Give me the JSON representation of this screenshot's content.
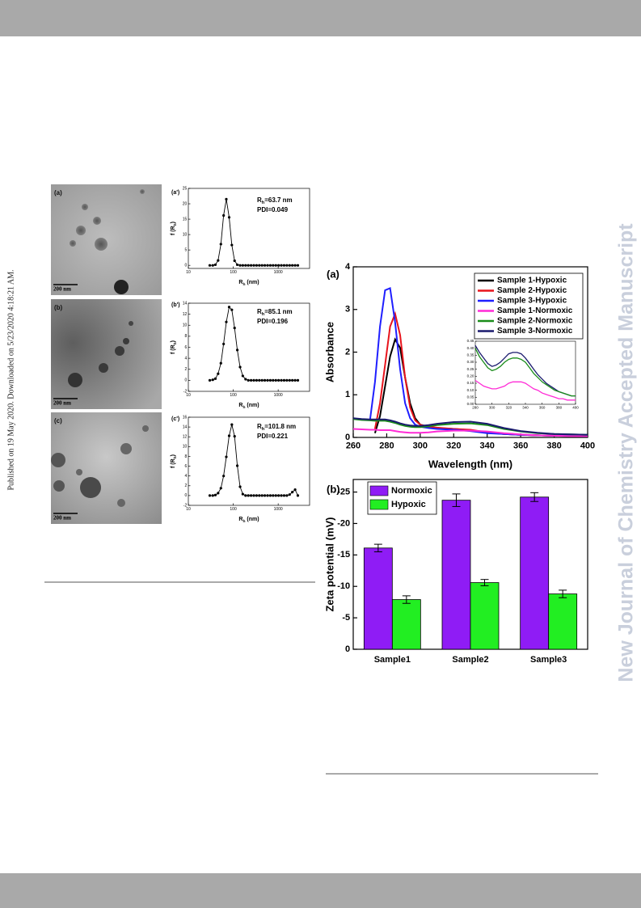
{
  "side_note": "Published on 19 May 2020. Downloaded on 5/23/2020 4:18:21 AM.",
  "watermark": "New Journal of Chemistry Accepted Manuscript",
  "tem_images": [
    {
      "label": "(a)",
      "scale_bar": "200 nm"
    },
    {
      "label": "(b)",
      "scale_bar": "200 nm"
    },
    {
      "label": "(c)",
      "scale_bar": "200 nm"
    }
  ],
  "chart_data": [
    {
      "type": "line",
      "panel_label": "(a')",
      "size_label": [
        "R",
        "h",
        "=63.7 nm"
      ],
      "pdi_label": "PDI=0.049",
      "x_label": [
        "R",
        "h",
        " (nm)"
      ],
      "y_label": [
        "f (R",
        "h",
        ")"
      ],
      "xscale": "log",
      "markers": true,
      "color": "#000000",
      "x": [
        30,
        35,
        40,
        46,
        53,
        61,
        70,
        81,
        93,
        107,
        123,
        142,
        163,
        188,
        216,
        249,
        287,
        330,
        380,
        437,
        503,
        580,
        668,
        769,
        886,
        1020,
        1175,
        1353,
        1559,
        1795,
        2067,
        2380,
        2740
      ],
      "values": [
        0,
        0,
        0.2,
        1.6,
        6.9,
        16.2,
        21.5,
        15.6,
        6.6,
        1.5,
        0.2,
        0,
        0,
        0,
        0,
        0,
        0,
        0,
        0,
        0,
        0,
        0,
        0,
        0,
        0,
        0,
        0,
        0,
        0,
        0,
        0,
        0,
        0
      ],
      "xlim": [
        10,
        5000
      ],
      "xticks": [
        10,
        100,
        1000
      ],
      "ylim": [
        -1,
        25
      ],
      "yticks": [
        0,
        5,
        10,
        15,
        20,
        25
      ]
    },
    {
      "type": "line",
      "panel_label": "(b')",
      "size_label": [
        "R",
        "h",
        "=85.1 nm"
      ],
      "pdi_label": "PDI=0.196",
      "x_label": [
        "R",
        "h",
        " (nm)"
      ],
      "y_label": [
        "f (R",
        "h",
        ")"
      ],
      "xscale": "log",
      "markers": true,
      "color": "#000000",
      "x": [
        30,
        35,
        40,
        46,
        53,
        61,
        70,
        81,
        93,
        107,
        123,
        142,
        163,
        188,
        216,
        249,
        287,
        330,
        380,
        437,
        503,
        580,
        668,
        769,
        886,
        1020,
        1175,
        1353,
        1559,
        1795,
        2067,
        2380,
        2740
      ],
      "values": [
        0,
        0.1,
        0.3,
        1.2,
        3.1,
        6.6,
        10.6,
        13.3,
        12.8,
        9.5,
        5.5,
        2.4,
        0.8,
        0.2,
        0,
        0,
        0,
        0,
        0,
        0,
        0,
        0,
        0,
        0,
        0,
        0,
        0,
        0,
        0,
        0,
        0,
        0,
        0
      ],
      "xlim": [
        10,
        5000
      ],
      "xticks": [
        10,
        100,
        1000
      ],
      "ylim": [
        -2,
        14
      ],
      "yticks": [
        -2,
        0,
        2,
        4,
        6,
        8,
        10,
        12,
        14
      ]
    },
    {
      "type": "line",
      "panel_label": "(c')",
      "size_label": [
        "R",
        "h",
        "=101.8 nm"
      ],
      "pdi_label": "PDI=0.221",
      "x_label": [
        "R",
        "h",
        " (nm)"
      ],
      "y_label": [
        "f (R",
        "h",
        ")"
      ],
      "xscale": "log",
      "markers": true,
      "color": "#000000",
      "x": [
        30,
        35,
        40,
        46,
        53,
        61,
        70,
        81,
        93,
        107,
        123,
        142,
        163,
        188,
        216,
        249,
        287,
        330,
        380,
        437,
        503,
        580,
        668,
        769,
        886,
        1020,
        1175,
        1353,
        1559,
        1795,
        2067,
        2380,
        2740
      ],
      "values": [
        0,
        0,
        0.1,
        0.5,
        1.5,
        4.0,
        7.9,
        12.2,
        14.5,
        12.1,
        6.1,
        1.8,
        0.3,
        0,
        0,
        0,
        0,
        0,
        0,
        0,
        0,
        0,
        0,
        0,
        0,
        0,
        0,
        0,
        0,
        0.2,
        0.7,
        1.2,
        0
      ],
      "xlim": [
        10,
        5000
      ],
      "xticks": [
        10,
        100,
        1000
      ],
      "ylim": [
        -2,
        16
      ],
      "yticks": [
        -2,
        0,
        2,
        4,
        6,
        8,
        10,
        12,
        14,
        16
      ]
    },
    {
      "type": "line",
      "panel_label": "(a)",
      "x_label": "Wavelength (nm)",
      "y_label": "Absorbance",
      "legend": "upper right",
      "x": [
        260,
        265,
        270,
        273,
        276,
        279,
        282,
        285,
        288,
        291,
        294,
        297,
        300,
        305,
        310,
        320,
        330,
        340,
        350,
        360,
        370,
        380,
        390,
        400
      ],
      "series": [
        {
          "name": "Sample 1-Hypoxic",
          "color": "#000000",
          "values": [
            null,
            null,
            null,
            0.1,
            0.5,
            1.2,
            1.9,
            2.3,
            2.1,
            1.4,
            0.8,
            0.45,
            0.3,
            0.25,
            0.22,
            0.2,
            0.17,
            0.12,
            0.08,
            0.06,
            0.05,
            0.04,
            0.03,
            0.03
          ]
        },
        {
          "name": "Sample 2-Hypoxic",
          "color": "#e8141c",
          "values": [
            null,
            null,
            null,
            0.2,
            0.8,
            1.7,
            2.6,
            2.9,
            2.4,
            1.4,
            0.7,
            0.4,
            0.3,
            0.25,
            0.23,
            0.2,
            0.18,
            0.12,
            0.08,
            0.06,
            0.05,
            0.04,
            0.04,
            0.03
          ]
        },
        {
          "name": "Sample 3-Hypoxic",
          "color": "#1f1fff",
          "values": [
            null,
            null,
            0.4,
            1.3,
            2.6,
            3.45,
            3.5,
            2.7,
            1.6,
            0.8,
            0.45,
            0.3,
            0.25,
            0.22,
            0.2,
            0.18,
            0.15,
            0.1,
            0.08,
            0.06,
            0.05,
            0.04,
            0.04,
            0.03
          ]
        },
        {
          "name": "Sample 1-Normoxic",
          "color": "#ff2bd6",
          "values": [
            0.2,
            0.19,
            0.18,
            0.18,
            0.17,
            0.17,
            0.17,
            0.15,
            0.13,
            0.12,
            0.11,
            0.11,
            0.11,
            0.12,
            0.14,
            0.16,
            0.16,
            0.14,
            0.1,
            0.07,
            0.05,
            0.04,
            0.03,
            0.03
          ]
        },
        {
          "name": "Sample 2-Normoxic",
          "color": "#1a8c1a",
          "values": [
            0.43,
            0.41,
            0.4,
            0.39,
            0.39,
            0.39,
            0.37,
            0.34,
            0.3,
            0.27,
            0.25,
            0.24,
            0.24,
            0.26,
            0.29,
            0.32,
            0.33,
            0.29,
            0.2,
            0.14,
            0.1,
            0.08,
            0.07,
            0.06
          ]
        },
        {
          "name": "Sample 3-Normoxic",
          "color": "#1a1a6e",
          "values": [
            0.45,
            0.43,
            0.42,
            0.42,
            0.42,
            0.42,
            0.4,
            0.37,
            0.33,
            0.3,
            0.28,
            0.27,
            0.27,
            0.29,
            0.32,
            0.36,
            0.37,
            0.32,
            0.22,
            0.15,
            0.11,
            0.08,
            0.07,
            0.06
          ]
        }
      ],
      "xlim": [
        260,
        400
      ],
      "xticks": [
        260,
        280,
        300,
        320,
        340,
        360,
        380,
        400
      ],
      "ylim": [
        0,
        4
      ],
      "yticks": [
        0,
        1,
        2,
        3,
        4
      ],
      "inset": {
        "x": [
          280,
          285,
          290,
          295,
          300,
          305,
          310,
          315,
          320,
          325,
          330,
          335,
          340,
          345,
          350,
          355,
          360,
          365,
          370,
          375,
          380,
          385,
          390,
          395,
          400
        ],
        "series": [
          {
            "color": "#1a1a6e",
            "values": [
              0.42,
              0.37,
              0.33,
              0.29,
              0.27,
              0.28,
              0.3,
              0.33,
              0.36,
              0.37,
              0.37,
              0.36,
              0.33,
              0.29,
              0.25,
              0.21,
              0.18,
              0.15,
              0.13,
              0.11,
              0.09,
              0.08,
              0.07,
              0.06,
              0.06
            ]
          },
          {
            "color": "#1a8c1a",
            "values": [
              0.4,
              0.34,
              0.3,
              0.26,
              0.24,
              0.25,
              0.27,
              0.3,
              0.32,
              0.33,
              0.33,
              0.32,
              0.3,
              0.26,
              0.22,
              0.19,
              0.16,
              0.14,
              0.12,
              0.1,
              0.09,
              0.08,
              0.07,
              0.06,
              0.06
            ]
          },
          {
            "color": "#ff2bd6",
            "values": [
              0.17,
              0.15,
              0.13,
              0.12,
              0.11,
              0.11,
              0.12,
              0.13,
              0.15,
              0.16,
              0.16,
              0.16,
              0.15,
              0.13,
              0.11,
              0.1,
              0.08,
              0.07,
              0.06,
              0.05,
              0.04,
              0.04,
              0.03,
              0.03,
              0.03
            ]
          }
        ],
        "xlim": [
          280,
          400
        ],
        "xticks": [
          280,
          300,
          320,
          340,
          360,
          380,
          400
        ],
        "ylim": [
          0,
          0.45
        ],
        "yticks": [
          {
            "value": 0,
            "label": "0.00"
          },
          0.05,
          {
            "value": 0.1,
            "label": "0.10"
          },
          0.15,
          {
            "value": 0.2,
            "label": "0.20"
          },
          0.25,
          {
            "value": 0.3,
            "label": "0.30"
          },
          0.35,
          {
            "value": 0.4,
            "label": "0.40"
          },
          0.45
        ]
      }
    },
    {
      "type": "bar",
      "panel_label": "(b)",
      "y_label": "Zeta potential (mV)",
      "legend": "upper left",
      "categories": [
        "Sample1",
        "Sample2",
        "Sample3"
      ],
      "series": [
        {
          "name": "Normoxic",
          "color": "#8f1cf5",
          "values": [
            -16.1,
            -23.7,
            -24.2
          ],
          "errors": [
            0.6,
            1.0,
            0.7
          ]
        },
        {
          "name": "Hypoxic",
          "color": "#22ee22",
          "values": [
            -7.9,
            -10.6,
            -8.8
          ],
          "errors": [
            0.6,
            0.5,
            0.6
          ]
        }
      ],
      "ylim": [
        0,
        -27
      ],
      "yticks": [
        0,
        -5,
        -10,
        -15,
        -20,
        -25
      ]
    }
  ]
}
